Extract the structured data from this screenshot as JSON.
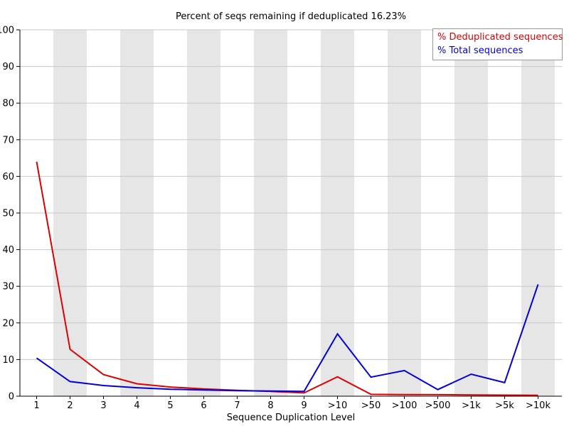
{
  "chart_data": {
    "type": "line",
    "title": "Percent of seqs remaining if deduplicated 16.23%",
    "xlabel": "Sequence Duplication Level",
    "ylabel": "",
    "ylim": [
      0,
      100
    ],
    "ytick_step": 10,
    "grid": true,
    "legend_position": "top-right",
    "background_stripes": "alternating columns on even categories",
    "categories": [
      "1",
      "2",
      "3",
      "4",
      "5",
      "6",
      "7",
      "8",
      "9",
      ">10",
      ">50",
      ">100",
      ">500",
      ">1k",
      ">5k",
      ">10k"
    ],
    "series": [
      {
        "name": "% Deduplicated sequences",
        "color": "#dd0000",
        "values": [
          64,
          12.8,
          5.9,
          3.4,
          2.5,
          2.0,
          1.6,
          1.3,
          0.9,
          5.3,
          0.5,
          0.45,
          0.4,
          0.35,
          0.3,
          0.25
        ]
      },
      {
        "name": "% Total sequences",
        "color": "#0000dd",
        "values": [
          10.4,
          4.0,
          2.9,
          2.3,
          1.9,
          1.7,
          1.5,
          1.4,
          1.3,
          17.0,
          5.2,
          7.0,
          1.8,
          6.0,
          3.7,
          30.5
        ]
      }
    ],
    "colors": {
      "stripe": "#e6e6e6",
      "gridline": "#c8c8c8",
      "axis": "#000000",
      "legend_border": "#999999"
    }
  }
}
